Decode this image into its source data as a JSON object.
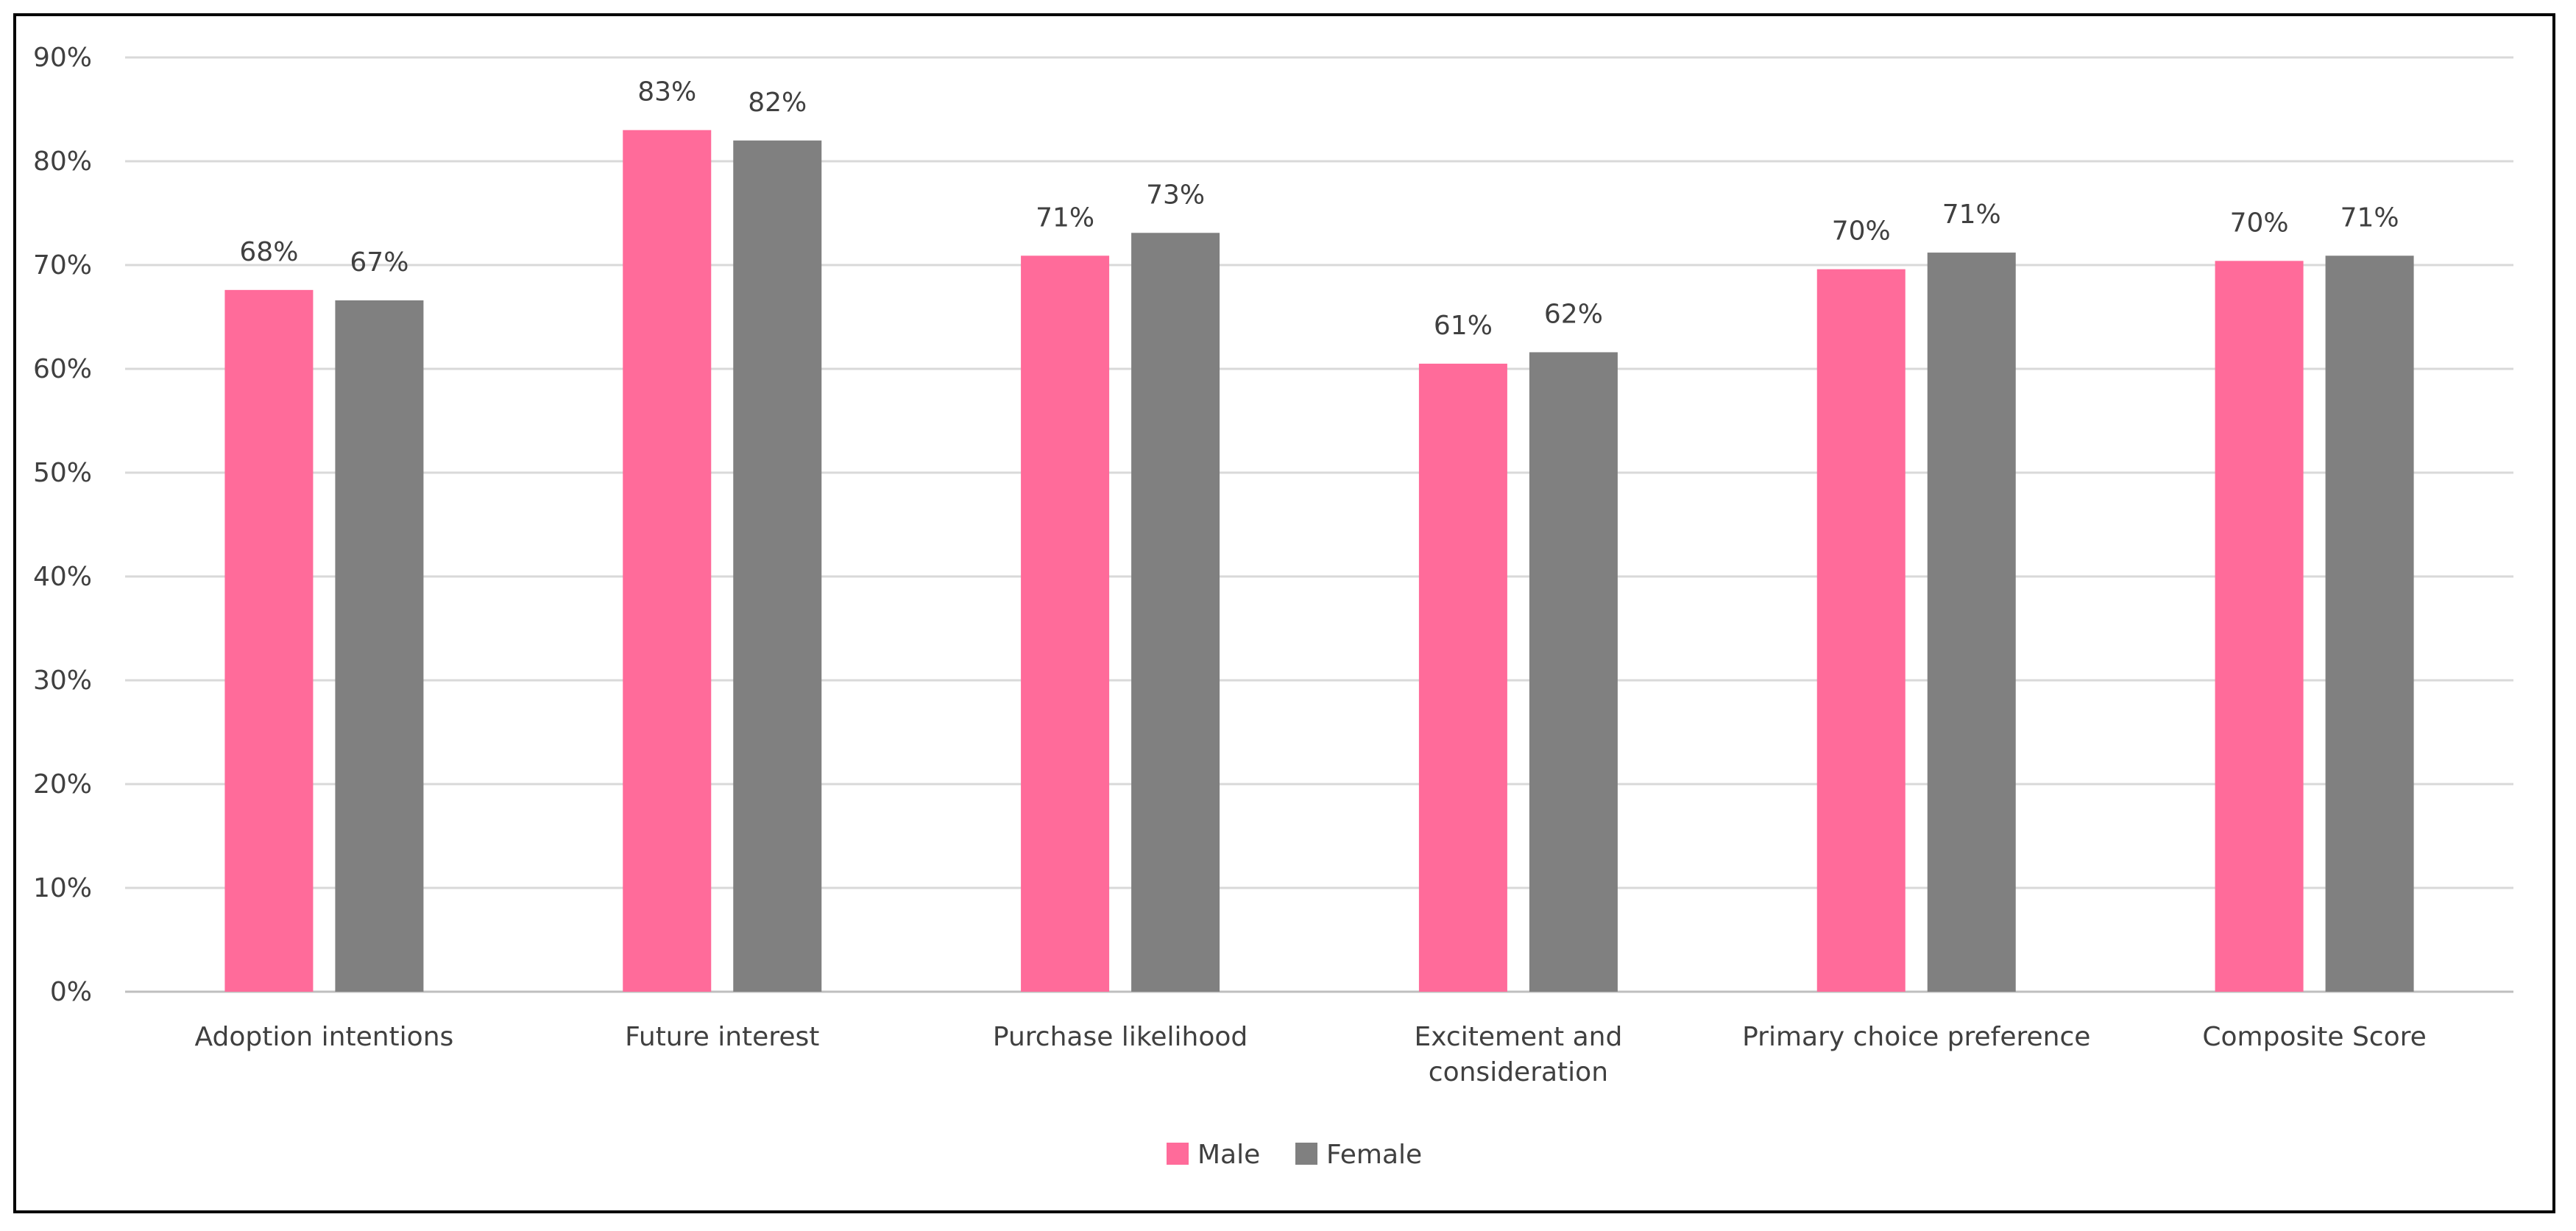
{
  "chart_data": {
    "type": "bar",
    "categories": [
      "Adoption intentions",
      "Future interest",
      "Purchase likelihood",
      "Excitement and consideration",
      "Primary choice preference",
      "Composite Score"
    ],
    "category_label_lines": [
      [
        "Adoption intentions"
      ],
      [
        "Future interest"
      ],
      [
        "Purchase likelihood"
      ],
      [
        "Excitement and",
        "consideration"
      ],
      [
        "Primary choice preference"
      ],
      [
        "Composite Score"
      ]
    ],
    "series": [
      {
        "name": "Male",
        "color": "#FF6B9A",
        "values": [
          0.676,
          0.83,
          0.709,
          0.605,
          0.696,
          0.704
        ],
        "labels": [
          "68%",
          "83%",
          "71%",
          "61%",
          "70%",
          "70%"
        ]
      },
      {
        "name": "Female",
        "color": "#808080",
        "values": [
          0.666,
          0.82,
          0.731,
          0.616,
          0.712,
          0.709
        ],
        "labels": [
          "67%",
          "82%",
          "73%",
          "62%",
          "71%",
          "71%"
        ]
      }
    ],
    "ylim": [
      0,
      0.9
    ],
    "yticks": [
      0,
      0.1,
      0.2,
      0.3,
      0.4,
      0.5,
      0.6,
      0.7,
      0.8,
      0.9
    ],
    "ytick_labels": [
      "0%",
      "10%",
      "20%",
      "30%",
      "40%",
      "50%",
      "60%",
      "70%",
      "80%",
      "90%"
    ],
    "grid": true,
    "legend_position": "bottom-center",
    "title": "",
    "xlabel": "",
    "ylabel": ""
  }
}
